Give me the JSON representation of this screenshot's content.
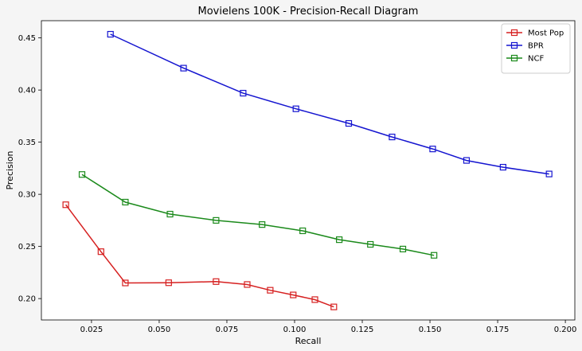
{
  "chart_data": {
    "type": "line",
    "title": "Movielens 100K - Precision-Recall Diagram",
    "xlabel": "Recall",
    "ylabel": "Precision",
    "xlim": [
      0.0065,
      0.2035
    ],
    "ylim": [
      0.1795,
      0.4665
    ],
    "xticks": [
      0.025,
      0.05,
      0.075,
      0.1,
      0.125,
      0.15,
      0.175,
      0.2
    ],
    "xtick_labels": [
      "0.025",
      "0.050",
      "0.075",
      "0.100",
      "0.125",
      "0.150",
      "0.175",
      "0.200"
    ],
    "yticks": [
      0.2,
      0.25,
      0.3,
      0.35,
      0.4,
      0.45
    ],
    "ytick_labels": [
      "0.20",
      "0.25",
      "0.30",
      "0.35",
      "0.40",
      "0.45"
    ],
    "grid": false,
    "legend_position": "top-right",
    "marker": "square",
    "series": [
      {
        "name": "Most Pop",
        "color": "#d62020",
        "x": [
          0.0155,
          0.0285,
          0.0375,
          0.0535,
          0.071,
          0.0825,
          0.091,
          0.0995,
          0.1075,
          0.1145
        ],
        "y": [
          0.29,
          0.245,
          0.215,
          0.2152,
          0.2163,
          0.2135,
          0.208,
          0.2035,
          0.199,
          0.192
        ]
      },
      {
        "name": "BPR",
        "color": "#1515d0",
        "x": [
          0.032,
          0.059,
          0.081,
          0.1005,
          0.12,
          0.136,
          0.151,
          0.1635,
          0.177,
          0.194
        ],
        "y": [
          0.4535,
          0.421,
          0.397,
          0.382,
          0.368,
          0.355,
          0.3435,
          0.3325,
          0.326,
          0.3195
        ]
      },
      {
        "name": "NCF",
        "color": "#1b8a1b",
        "x": [
          0.0215,
          0.0375,
          0.054,
          0.071,
          0.088,
          0.103,
          0.1165,
          0.128,
          0.14,
          0.1515
        ],
        "y": [
          0.319,
          0.2925,
          0.281,
          0.275,
          0.271,
          0.265,
          0.2565,
          0.252,
          0.2475,
          0.2415
        ]
      }
    ]
  }
}
